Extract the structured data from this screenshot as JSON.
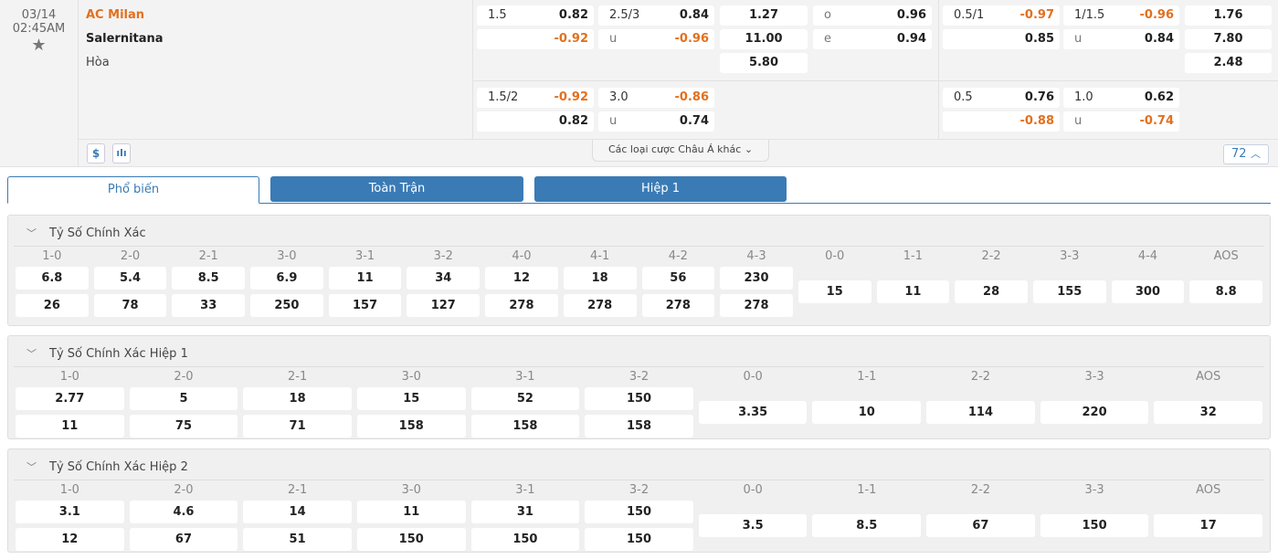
{
  "match": {
    "date": "03/14",
    "time": "02:45AM",
    "home": "AC Milan",
    "away": "Salernitana",
    "draw": "Hòa"
  },
  "icons": {
    "favorite": "star-icon",
    "money": "dollar-icon",
    "stats": "bar-chart-icon"
  },
  "colors": {
    "accent": "#3a7bb5",
    "negative": "#e2701f"
  },
  "odds": {
    "ft_main": {
      "handicap": [
        [
          "1.5",
          "0.82"
        ],
        [
          "",
          "-0.92"
        ]
      ],
      "over_under": [
        [
          "2.5/3",
          "0.84"
        ],
        [
          "u",
          "-0.96"
        ]
      ],
      "x12": [
        "1.27",
        "11.00",
        "5.80"
      ],
      "odd_even": [
        [
          "o",
          "0.96"
        ],
        [
          "e",
          "0.94"
        ]
      ]
    },
    "ft_alt": {
      "handicap": [
        [
          "1.5/2",
          "-0.92"
        ],
        [
          "",
          "0.82"
        ]
      ],
      "over_under": [
        [
          "3.0",
          "-0.86"
        ],
        [
          "u",
          "0.74"
        ]
      ]
    },
    "h1_main": {
      "handicap": [
        [
          "0.5/1",
          "-0.97"
        ],
        [
          "",
          "0.85"
        ]
      ],
      "over_under": [
        [
          "1/1.5",
          "-0.96"
        ],
        [
          "u",
          "0.84"
        ]
      ],
      "x12": [
        "1.76",
        "7.80",
        "2.48"
      ]
    },
    "h1_alt": {
      "handicap": [
        [
          "0.5",
          "0.76"
        ],
        [
          "",
          "-0.88"
        ]
      ],
      "over_under": [
        [
          "1.0",
          "0.62"
        ],
        [
          "u",
          "-0.74"
        ]
      ]
    }
  },
  "more_label": "Các loại cược Châu Á khác",
  "market_count": "72",
  "tabs": [
    "Phổ biến",
    "Toàn Trận",
    "Hiệp 1"
  ],
  "sections": [
    {
      "title": "Tỷ Số Chính Xác",
      "scores": [
        {
          "label": "1-0",
          "values": [
            "6.8",
            "26"
          ]
        },
        {
          "label": "2-0",
          "values": [
            "5.4",
            "78"
          ]
        },
        {
          "label": "2-1",
          "values": [
            "8.5",
            "33"
          ]
        },
        {
          "label": "3-0",
          "values": [
            "6.9",
            "250"
          ]
        },
        {
          "label": "3-1",
          "values": [
            "11",
            "157"
          ]
        },
        {
          "label": "3-2",
          "values": [
            "34",
            "127"
          ]
        },
        {
          "label": "4-0",
          "values": [
            "12",
            "278"
          ]
        },
        {
          "label": "4-1",
          "values": [
            "18",
            "278"
          ]
        },
        {
          "label": "4-2",
          "values": [
            "56",
            "278"
          ]
        },
        {
          "label": "4-3",
          "values": [
            "230",
            "278"
          ]
        },
        {
          "label": "0-0",
          "values": [
            "15"
          ]
        },
        {
          "label": "1-1",
          "values": [
            "11"
          ]
        },
        {
          "label": "2-2",
          "values": [
            "28"
          ]
        },
        {
          "label": "3-3",
          "values": [
            "155"
          ]
        },
        {
          "label": "4-4",
          "values": [
            "300"
          ]
        },
        {
          "label": "AOS",
          "values": [
            "8.8"
          ]
        }
      ]
    },
    {
      "title": "Tỷ Số Chính Xác Hiệp 1",
      "scores": [
        {
          "label": "1-0",
          "values": [
            "2.77",
            "11"
          ]
        },
        {
          "label": "2-0",
          "values": [
            "5",
            "75"
          ]
        },
        {
          "label": "2-1",
          "values": [
            "18",
            "71"
          ]
        },
        {
          "label": "3-0",
          "values": [
            "15",
            "158"
          ]
        },
        {
          "label": "3-1",
          "values": [
            "52",
            "158"
          ]
        },
        {
          "label": "3-2",
          "values": [
            "150",
            "158"
          ]
        },
        {
          "label": "0-0",
          "values": [
            "3.35"
          ]
        },
        {
          "label": "1-1",
          "values": [
            "10"
          ]
        },
        {
          "label": "2-2",
          "values": [
            "114"
          ]
        },
        {
          "label": "3-3",
          "values": [
            "220"
          ]
        },
        {
          "label": "AOS",
          "values": [
            "32"
          ]
        }
      ]
    },
    {
      "title": "Tỷ Số Chính Xác Hiệp 2",
      "scores": [
        {
          "label": "1-0",
          "values": [
            "3.1",
            "12"
          ]
        },
        {
          "label": "2-0",
          "values": [
            "4.6",
            "67"
          ]
        },
        {
          "label": "2-1",
          "values": [
            "14",
            "51"
          ]
        },
        {
          "label": "3-0",
          "values": [
            "11",
            "150"
          ]
        },
        {
          "label": "3-1",
          "values": [
            "31",
            "150"
          ]
        },
        {
          "label": "3-2",
          "values": [
            "150",
            "150"
          ]
        },
        {
          "label": "0-0",
          "values": [
            "3.5"
          ]
        },
        {
          "label": "1-1",
          "values": [
            "8.5"
          ]
        },
        {
          "label": "2-2",
          "values": [
            "67"
          ]
        },
        {
          "label": "3-3",
          "values": [
            "150"
          ]
        },
        {
          "label": "AOS",
          "values": [
            "17"
          ]
        }
      ]
    }
  ]
}
